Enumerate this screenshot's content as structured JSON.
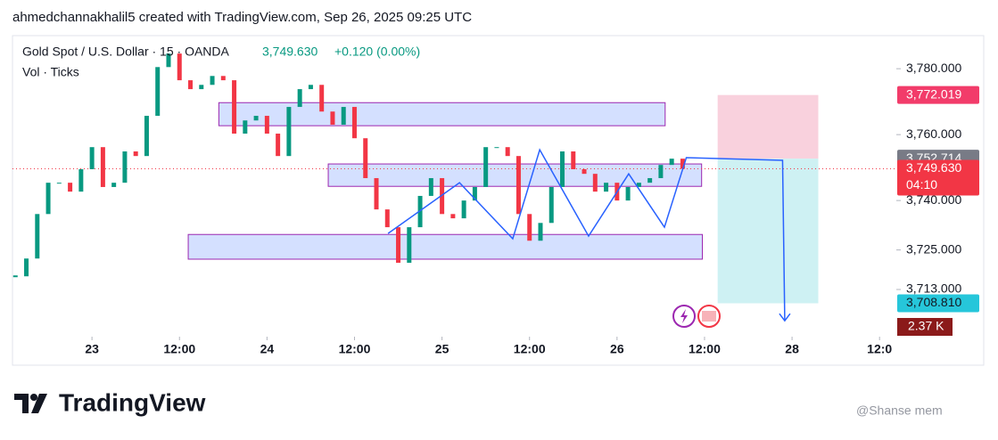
{
  "header": {
    "attribution": "ahmedchannakhalil5 created with TradingView.com, Sep 26, 2025 09:25 UTC",
    "symbol": "Gold Spot / U.S. Dollar · 15 · OANDA",
    "change": "+0.120 (0.00%)",
    "volume_label": "Vol · Ticks"
  },
  "chart_data": {
    "type": "candlestick",
    "x": [
      -10.5,
      -9,
      -7.5,
      -6,
      -4.5,
      -3,
      -1.5,
      0,
      1.5,
      3,
      4.5,
      6,
      7.5,
      9,
      10.5,
      12,
      13.5,
      15,
      16.5,
      18,
      19.5,
      21,
      22.5,
      24,
      25.5,
      27,
      28.5,
      30,
      31.5,
      33,
      34.5,
      36,
      37.5,
      39,
      40.5,
      42,
      43.5,
      45,
      46.5,
      48,
      49.5,
      51,
      52.5,
      54,
      55.5,
      57,
      58.5,
      60,
      61.5,
      63,
      64.5,
      66,
      67.5,
      69,
      70.5,
      72,
      73.5,
      75,
      76.5,
      78,
      79.5,
      81
    ],
    "close": [
      3717.0,
      3722.4,
      3735.9,
      3745.4,
      3745.4,
      3742.7,
      3749.5,
      3756.2,
      3744.1,
      3745.4,
      3754.9,
      3753.5,
      3765.7,
      3780.5,
      3784.6,
      3776.5,
      3773.8,
      3775.1,
      3777.8,
      3776.5,
      3760.3,
      3764.3,
      3765.7,
      3760.3,
      3753.5,
      3768.4,
      3773.8,
      3775.1,
      3767.0,
      3763.0,
      3768.4,
      3758.9,
      3746.8,
      3737.3,
      3731.9,
      3721.1,
      3731.9,
      3741.4,
      3746.8,
      3735.9,
      3734.6,
      3740.0,
      3744.1,
      3756.2,
      3756.2,
      3753.5,
      3735.9,
      3727.8,
      3733.2,
      3744.1,
      3754.9,
      3749.5,
      3748.1,
      3742.7,
      3745.4,
      3740.0,
      3744.1,
      3745.4,
      3746.8,
      3750.8,
      3752.7,
      3749.63
    ],
    "up_color": "#089981",
    "down_color": "#f23645",
    "xlim": [
      -10.9,
      110.3
    ],
    "ylim": [
      3700.3,
      3789.5
    ],
    "xticks": [
      {
        "value": 0,
        "label": "23"
      },
      {
        "value": 12,
        "label": "12:00"
      },
      {
        "value": 24,
        "label": "24"
      },
      {
        "value": 36,
        "label": "12:00"
      },
      {
        "value": 48,
        "label": "25"
      },
      {
        "value": 60,
        "label": "12:00"
      },
      {
        "value": 72,
        "label": "26"
      },
      {
        "value": 84,
        "label": "12:00"
      },
      {
        "value": 96,
        "label": "28"
      },
      {
        "value": 108,
        "label": "12:0"
      }
    ],
    "yticks": [
      {
        "value": 3780,
        "label": "3,780.000"
      },
      {
        "value": 3760,
        "label": "3,760.000"
      },
      {
        "value": 3740,
        "label": "3,740.000"
      },
      {
        "value": 3725,
        "label": "3,725.000"
      },
      {
        "value": 3713,
        "label": "3,713.000"
      }
    ],
    "zones": [
      {
        "x": [
          17.4,
          78.6
        ],
        "y": [
          3762.7,
          3769.7
        ]
      },
      {
        "x": [
          32.4,
          83.6
        ],
        "y": [
          3744.3,
          3751.1
        ]
      },
      {
        "x": [
          13.2,
          83.7
        ],
        "y": [
          3722.2,
          3729.7
        ]
      }
    ],
    "zone_color": "#2962ff",
    "pattern": {
      "x": [
        40.6,
        50.4,
        57.7,
        61.4,
        68.1,
        73.6,
        78.5,
        81.5,
        94.7,
        95.0
      ],
      "y": [
        3730.0,
        3745.4,
        3728.4,
        3755.4,
        3729.2,
        3748.1,
        3731.9,
        3753.0,
        3752.2,
        3703.5
      ],
      "color": "#2962ff"
    },
    "position": {
      "x": [
        85.8,
        99.6
      ],
      "stop": {
        "value": 3772.019,
        "label": "3,772.019"
      },
      "entry": {
        "value": 3752.714,
        "label": "3,752.714"
      },
      "target": {
        "value": 3708.81,
        "label": "3,708.810"
      }
    },
    "last_price": {
      "value": 3749.63,
      "label": "3,749.630",
      "countdown": "04:10"
    },
    "volume": {
      "label": "2.37 K"
    }
  },
  "footer": {
    "brand": "TradingView",
    "watermark": "@Shanse mem"
  }
}
